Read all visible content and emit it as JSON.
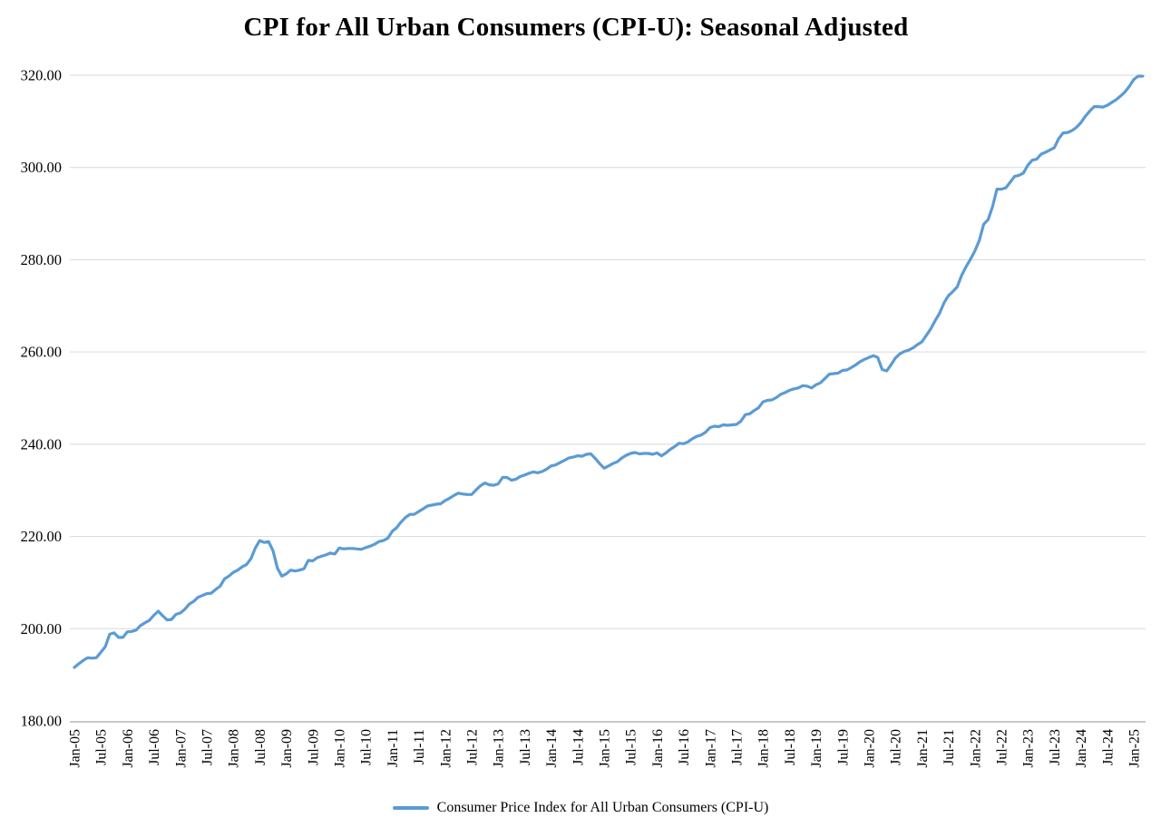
{
  "chart_data": {
    "type": "line",
    "title": "CPI for All Urban Consumers (CPI-U): Seasonal Adjusted",
    "ylim": [
      180,
      320
    ],
    "y_ticks": [
      180,
      200,
      220,
      240,
      260,
      280,
      300,
      320
    ],
    "y_tick_labels": [
      "180.00",
      "200.00",
      "220.00",
      "240.00",
      "260.00",
      "280.00",
      "300.00",
      "320.00"
    ],
    "x_tick_every_n_points": 6,
    "x_tick_labels": [
      "Jan-05",
      "Jul-05",
      "Jan-06",
      "Jul-06",
      "Jan-07",
      "Jul-07",
      "Jan-08",
      "Jul-08",
      "Jan-09",
      "Jul-09",
      "Jan-10",
      "Jul-10",
      "Jan-11",
      "Jul-11",
      "Jan-12",
      "Jul-12",
      "Jan-13",
      "Jul-13",
      "Jan-14",
      "Jul-14",
      "Jan-15",
      "Jul-15",
      "Jan-16",
      "Jul-16",
      "Jan-17",
      "Jul-17",
      "Jan-18",
      "Jul-18",
      "Jan-19",
      "Jul-19",
      "Jan-20",
      "Jul-20",
      "Jan-21",
      "Jul-21",
      "Jan-22",
      "Jul-22",
      "Jan-23",
      "Jul-23",
      "Jan-24",
      "Jul-24",
      "Jan-25"
    ],
    "grid": "horizontal",
    "gridline_color": "#D9D9D9",
    "axis_line_color": "#A6A6A6",
    "text_color": "#000000",
    "legend_position": "bottom",
    "series": [
      {
        "name": "Consumer Price Index for All Urban Consumers (CPI-U)",
        "color": "#5B9BD5",
        "start_month": "Jan-2005",
        "frequency": "monthly",
        "values": [
          191.6,
          192.4,
          193.1,
          193.7,
          193.6,
          193.7,
          194.9,
          196.1,
          198.8,
          199.1,
          198.1,
          198.1,
          199.3,
          199.4,
          199.7,
          200.7,
          201.3,
          201.8,
          202.9,
          203.8,
          202.8,
          201.9,
          202.0,
          203.1,
          203.4,
          204.2,
          205.3,
          205.9,
          206.8,
          207.2,
          207.6,
          207.7,
          208.5,
          209.2,
          210.8,
          211.4,
          212.2,
          212.7,
          213.4,
          213.9,
          215.2,
          217.5,
          219.1,
          218.7,
          218.9,
          216.9,
          213.1,
          211.4,
          211.9,
          212.7,
          212.5,
          212.7,
          213.0,
          214.8,
          214.7,
          215.4,
          215.7,
          216.0,
          216.4,
          216.2,
          217.5,
          217.3,
          217.4,
          217.4,
          217.3,
          217.2,
          217.6,
          217.9,
          218.3,
          218.9,
          219.1,
          219.6,
          221.1,
          221.9,
          223.1,
          224.1,
          224.8,
          224.8,
          225.4,
          226.0,
          226.6,
          226.8,
          227.0,
          227.1,
          227.8,
          228.3,
          228.9,
          229.4,
          229.2,
          229.1,
          229.1,
          230.1,
          231.0,
          231.6,
          231.2,
          231.1,
          231.4,
          232.8,
          232.8,
          232.2,
          232.4,
          233.0,
          233.3,
          233.7,
          234.0,
          233.8,
          234.1,
          234.6,
          235.3,
          235.5,
          236.0,
          236.5,
          237.0,
          237.2,
          237.5,
          237.4,
          237.8,
          237.9,
          236.9,
          235.8,
          234.8,
          235.3,
          235.8,
          236.2,
          237.0,
          237.6,
          238.0,
          238.2,
          237.9,
          238.0,
          238.0,
          237.8,
          238.1,
          237.5,
          238.1,
          238.9,
          239.5,
          240.2,
          240.1,
          240.5,
          241.2,
          241.7,
          242.0,
          242.6,
          243.6,
          243.9,
          243.8,
          244.2,
          244.1,
          244.2,
          244.3,
          245.0,
          246.4,
          246.6,
          247.3,
          247.9,
          249.2,
          249.5,
          249.6,
          250.1,
          250.8,
          251.2,
          251.7,
          252.0,
          252.2,
          252.7,
          252.6,
          252.2,
          252.9,
          253.3,
          254.2,
          255.2,
          255.3,
          255.4,
          256.0,
          256.1,
          256.6,
          257.2,
          257.9,
          258.4,
          258.8,
          259.2,
          258.8,
          256.2,
          255.9,
          257.2,
          258.7,
          259.6,
          260.1,
          260.4,
          260.9,
          261.6,
          262.2,
          263.6,
          265.0,
          266.8,
          268.4,
          270.6,
          272.2,
          273.1,
          274.1,
          276.6,
          278.5,
          280.1,
          281.9,
          284.2,
          287.7,
          288.7,
          291.5,
          295.3,
          295.3,
          295.6,
          296.8,
          298.1,
          298.3,
          298.8,
          300.5,
          301.6,
          301.8,
          302.9,
          303.3,
          303.8,
          304.3,
          306.3,
          307.5,
          307.6,
          308.0,
          308.7,
          309.7,
          311.1,
          312.2,
          313.2,
          313.2,
          313.1,
          313.5,
          314.1,
          314.7,
          315.5,
          316.4,
          317.6,
          319.1,
          319.8,
          319.8
        ]
      }
    ]
  }
}
